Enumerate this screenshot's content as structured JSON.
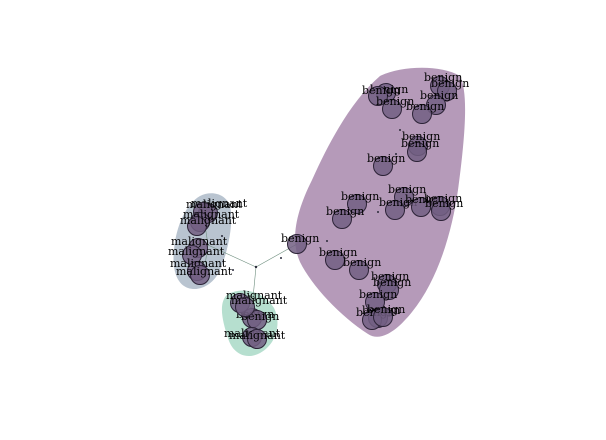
{
  "colors": {
    "benign_cluster": "#b59ab9",
    "malignant_cluster_upper": "#b9c4d0",
    "mixed_cluster_lower": "#b6dfcf",
    "node_fill": "#725f82",
    "node_stroke": "#2b2236",
    "edge": "#6f8f7f"
  },
  "clusters": [
    {
      "id": "benign",
      "color_key": "benign_cluster"
    },
    {
      "id": "malignant-upper",
      "color_key": "malignant_cluster_upper"
    },
    {
      "id": "mixed-lower",
      "color_key": "mixed_cluster_lower"
    }
  ],
  "nodes": [
    {
      "id": "n1",
      "label": "benign"
    },
    {
      "id": "n2",
      "label": "benign"
    },
    {
      "id": "n3",
      "label": "benign"
    },
    {
      "id": "n4",
      "label": "benign"
    },
    {
      "id": "n5",
      "label": "benign"
    },
    {
      "id": "n6",
      "label": "benign"
    },
    {
      "id": "n7",
      "label": "benign"
    },
    {
      "id": "n8",
      "label": "benign"
    },
    {
      "id": "n9",
      "label": "benign"
    },
    {
      "id": "n10",
      "label": "benign"
    },
    {
      "id": "n11",
      "label": "benign"
    },
    {
      "id": "n12",
      "label": "benign"
    },
    {
      "id": "n13",
      "label": "benign"
    },
    {
      "id": "n14",
      "label": "benign"
    },
    {
      "id": "n15",
      "label": "benign"
    },
    {
      "id": "n16",
      "label": "benign"
    },
    {
      "id": "n17",
      "label": "benign"
    },
    {
      "id": "n18",
      "label": "benign"
    },
    {
      "id": "n19",
      "label": "benign"
    },
    {
      "id": "n20",
      "label": "benign"
    },
    {
      "id": "n21",
      "label": "benign"
    },
    {
      "id": "n22",
      "label": "benign"
    },
    {
      "id": "n23",
      "label": "benign"
    },
    {
      "id": "n24",
      "label": "benign"
    },
    {
      "id": "n25",
      "label": "benign"
    },
    {
      "id": "n26",
      "label": "benign"
    },
    {
      "id": "n27",
      "label": "malignant"
    },
    {
      "id": "n28",
      "label": "malignant"
    },
    {
      "id": "n29",
      "label": "malignant"
    },
    {
      "id": "n30",
      "label": "malignant"
    },
    {
      "id": "n31",
      "label": "malignant"
    },
    {
      "id": "n32",
      "label": "malignant"
    },
    {
      "id": "n33",
      "label": "malignant"
    },
    {
      "id": "n34",
      "label": "malignant"
    },
    {
      "id": "n35",
      "label": "benign"
    },
    {
      "id": "n36",
      "label": "benign"
    },
    {
      "id": "n37",
      "label": "malignant"
    },
    {
      "id": "n38",
      "label": "malignant"
    },
    {
      "id": "n39",
      "label": "malignant"
    },
    {
      "id": "n40",
      "label": "malignant"
    }
  ]
}
